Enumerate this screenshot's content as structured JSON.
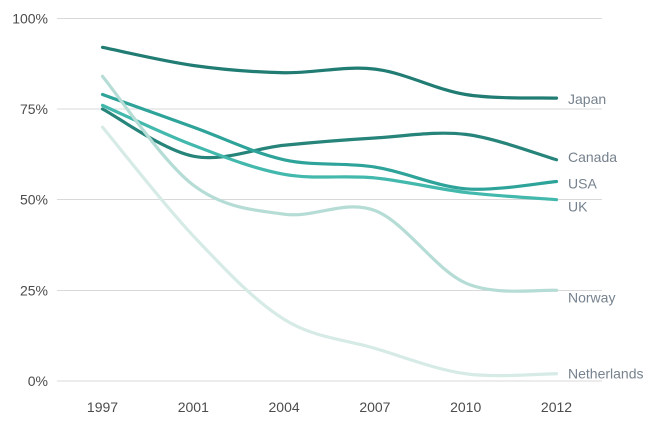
{
  "chart_data": {
    "type": "line",
    "smooth": true,
    "title": "",
    "xlabel": "",
    "ylabel": "",
    "grid": "horizontal",
    "legend_position": "end-of-line-labels-right",
    "categories": [
      "1997",
      "2001",
      "2004",
      "2007",
      "2010",
      "2012"
    ],
    "y_ticks": [
      {
        "label": "100%",
        "value": 100
      },
      {
        "label": "75%",
        "value": 75
      },
      {
        "label": "50%",
        "value": 50
      },
      {
        "label": "25%",
        "value": 25
      },
      {
        "label": "0%",
        "value": 0
      }
    ],
    "ylim": [
      0,
      100
    ],
    "series": [
      {
        "name": "Japan",
        "color": "#217c73",
        "values": [
          92,
          87,
          85,
          86,
          79,
          78
        ],
        "label_dy": 1
      },
      {
        "name": "Canada",
        "color": "#26847b",
        "values": [
          75,
          62,
          65,
          67,
          68,
          61
        ],
        "label_dy": -3
      },
      {
        "name": "USA",
        "color": "#2ea39a",
        "values": [
          79,
          70,
          61,
          59,
          53,
          55
        ],
        "label_dy": 2
      },
      {
        "name": "UK",
        "color": "#43b8ad",
        "values": [
          76,
          65,
          57,
          56,
          52,
          50
        ],
        "label_dy": 7
      },
      {
        "name": "Norway",
        "color": "#b6dcd6",
        "values": [
          84,
          54,
          46,
          47,
          27,
          25
        ],
        "label_dy": 7
      },
      {
        "name": "Netherlands",
        "color": "#d6ebe6",
        "values": [
          70,
          40,
          17,
          9,
          2,
          2
        ],
        "label_dy": 0
      }
    ],
    "colors": {
      "gridline": "#d9d9d9",
      "axis_label": "#4c4c4c",
      "series_label": "#76828e",
      "background": "#ffffff"
    }
  }
}
